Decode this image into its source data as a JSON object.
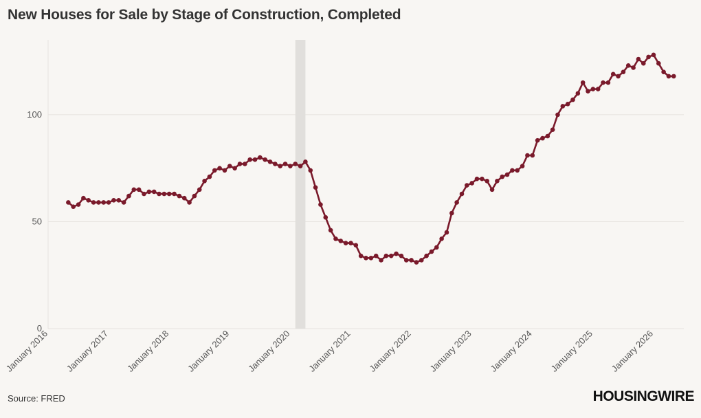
{
  "page": {
    "title": "New Houses for Sale by Stage of Construction, Completed",
    "source": "Source: FRED",
    "logo": "HOUSINGWIRE"
  },
  "colors": {
    "background": "#f8f6f3",
    "line": "#7a1a2b",
    "recession_band": "#e1dfdc",
    "grid": "#e6e3df"
  },
  "chart_data": {
    "type": "line",
    "title": "New Houses for Sale by Stage of Construction, Completed",
    "xlabel": "",
    "ylabel": "",
    "x_ticks": [
      "January 2016",
      "January 2017",
      "January 2018",
      "January 2019",
      "January 2020",
      "January 2021",
      "January 2022",
      "January 2023",
      "January 2024",
      "January 2025",
      "January 2026"
    ],
    "ylim": [
      0,
      135
    ],
    "y_ticks": [
      0,
      50,
      100
    ],
    "grid": true,
    "recession": {
      "start": "2020-02",
      "end": "2020-04"
    },
    "series": [
      {
        "start": "2016-05",
        "frequency": "monthly",
        "values": [
          59,
          57,
          58,
          61,
          60,
          59,
          59,
          59,
          59,
          60,
          60,
          59,
          62,
          65,
          65,
          63,
          64,
          64,
          63,
          63,
          63,
          63,
          62,
          61,
          59,
          62,
          65,
          69,
          71,
          74,
          75,
          74,
          76,
          75,
          77,
          77,
          79,
          79,
          80,
          79,
          78,
          77,
          76,
          77,
          76,
          77,
          76,
          78,
          74,
          66,
          58,
          52,
          46,
          42,
          41,
          40,
          40,
          39,
          34,
          33,
          33,
          34,
          32,
          34,
          34,
          35,
          34,
          32,
          32,
          31,
          32,
          34,
          36,
          38,
          42,
          45,
          54,
          59,
          63,
          67,
          68,
          70,
          70,
          69,
          65,
          69,
          71,
          72,
          74,
          74,
          76,
          81,
          81,
          88,
          89,
          90,
          93,
          100,
          104,
          105,
          107,
          110,
          115,
          111,
          112,
          112,
          115,
          115,
          119,
          118,
          120,
          123,
          122,
          126,
          124,
          127,
          128,
          124,
          120,
          118,
          118
        ]
      }
    ]
  }
}
